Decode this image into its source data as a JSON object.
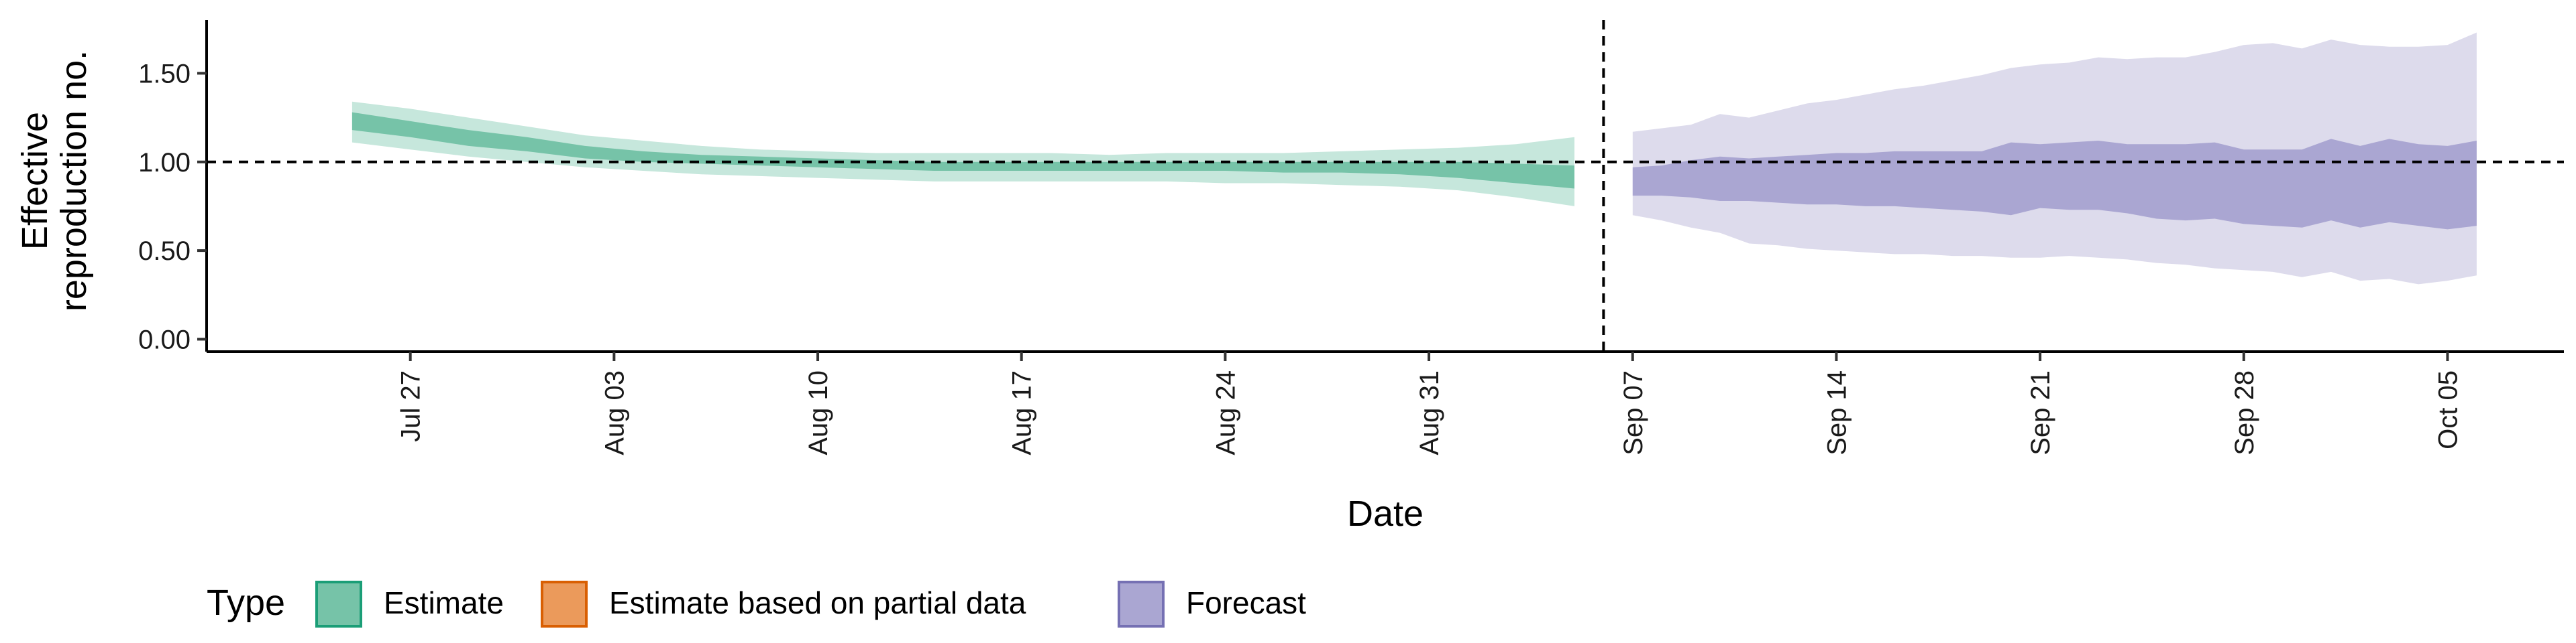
{
  "chart_data": {
    "type": "area",
    "xlabel": "Date",
    "ylabel_lines": [
      "Effective",
      "reproduction no."
    ],
    "ylim": [
      -0.07,
      1.8
    ],
    "yticks": [
      0.0,
      0.5,
      1.0,
      1.5
    ],
    "ytick_labels": [
      "0.00",
      "0.50",
      "1.00",
      "1.50"
    ],
    "xlim": [
      "2020-07-20",
      "2020-10-09"
    ],
    "xticks": [
      "2020-07-27",
      "2020-08-03",
      "2020-08-10",
      "2020-08-17",
      "2020-08-24",
      "2020-08-31",
      "2020-09-07",
      "2020-09-14",
      "2020-09-21",
      "2020-09-28",
      "2020-10-05"
    ],
    "xtick_labels": [
      "Jul 27",
      "Aug 03",
      "Aug 10",
      "Aug 17",
      "Aug 24",
      "Aug 31",
      "Sep 07",
      "Sep 14",
      "Sep 21",
      "Sep 28",
      "Oct 05"
    ],
    "reference_lines": {
      "horizontal_y": 1.0,
      "vertical_date": "2020-09-06"
    },
    "grid": false,
    "legend": {
      "position": "bottom-left",
      "title": "Type",
      "items": [
        {
          "label": "Estimate",
          "fill": "#76c3a8",
          "stroke": "#1b9e77"
        },
        {
          "label": "Estimate based on partial data",
          "fill": "#eb9a5b",
          "stroke": "#d95f02"
        },
        {
          "label": "Forecast",
          "fill": "#aaa6d2",
          "stroke": "#7570b3"
        }
      ]
    },
    "series": [
      {
        "name": "Estimate",
        "colors": {
          "outer": "#c6e7dc",
          "inner": "#76c3a8"
        },
        "dates": [
          "2020-07-25",
          "2020-07-27",
          "2020-07-29",
          "2020-07-31",
          "2020-08-02",
          "2020-08-04",
          "2020-08-06",
          "2020-08-08",
          "2020-08-10",
          "2020-08-12",
          "2020-08-14",
          "2020-08-16",
          "2020-08-18",
          "2020-08-20",
          "2020-08-22",
          "2020-08-24",
          "2020-08-26",
          "2020-08-28",
          "2020-08-30",
          "2020-09-01",
          "2020-09-03",
          "2020-09-05"
        ],
        "outer_upper": [
          1.34,
          1.3,
          1.25,
          1.2,
          1.15,
          1.12,
          1.09,
          1.07,
          1.06,
          1.05,
          1.05,
          1.05,
          1.05,
          1.04,
          1.05,
          1.05,
          1.05,
          1.06,
          1.07,
          1.08,
          1.1,
          1.14
        ],
        "inner_upper": [
          1.28,
          1.23,
          1.18,
          1.14,
          1.09,
          1.06,
          1.04,
          1.03,
          1.02,
          1.01,
          1.0,
          1.0,
          1.0,
          1.0,
          1.0,
          1.0,
          1.0,
          1.0,
          1.0,
          1.0,
          0.99,
          0.98
        ],
        "inner_lower": [
          1.18,
          1.14,
          1.09,
          1.06,
          1.02,
          1.0,
          0.99,
          0.98,
          0.97,
          0.96,
          0.95,
          0.95,
          0.95,
          0.95,
          0.95,
          0.95,
          0.94,
          0.94,
          0.93,
          0.91,
          0.88,
          0.85
        ],
        "outer_lower": [
          1.11,
          1.07,
          1.03,
          1.0,
          0.97,
          0.95,
          0.93,
          0.92,
          0.91,
          0.9,
          0.89,
          0.89,
          0.89,
          0.89,
          0.89,
          0.88,
          0.88,
          0.87,
          0.86,
          0.84,
          0.8,
          0.75
        ]
      },
      {
        "name": "Forecast",
        "colors": {
          "outer": "#dddbec",
          "inner": "#aaa6d2"
        },
        "dates": [
          "2020-09-07",
          "2020-09-08",
          "2020-09-09",
          "2020-09-10",
          "2020-09-11",
          "2020-09-12",
          "2020-09-13",
          "2020-09-14",
          "2020-09-15",
          "2020-09-16",
          "2020-09-17",
          "2020-09-18",
          "2020-09-19",
          "2020-09-20",
          "2020-09-21",
          "2020-09-22",
          "2020-09-23",
          "2020-09-24",
          "2020-09-25",
          "2020-09-26",
          "2020-09-27",
          "2020-09-28",
          "2020-09-29",
          "2020-09-30",
          "2020-10-01",
          "2020-10-02",
          "2020-10-03",
          "2020-10-04",
          "2020-10-05",
          "2020-10-06"
        ],
        "outer_upper": [
          1.17,
          1.19,
          1.21,
          1.27,
          1.25,
          1.29,
          1.33,
          1.35,
          1.38,
          1.41,
          1.43,
          1.46,
          1.49,
          1.53,
          1.55,
          1.56,
          1.59,
          1.58,
          1.59,
          1.59,
          1.62,
          1.66,
          1.67,
          1.64,
          1.69,
          1.66,
          1.65,
          1.65,
          1.66,
          1.73
        ],
        "inner_upper": [
          0.97,
          0.98,
          1.01,
          1.03,
          1.02,
          1.03,
          1.04,
          1.05,
          1.05,
          1.06,
          1.06,
          1.06,
          1.06,
          1.11,
          1.1,
          1.11,
          1.12,
          1.1,
          1.1,
          1.1,
          1.11,
          1.07,
          1.07,
          1.07,
          1.13,
          1.09,
          1.13,
          1.1,
          1.09,
          1.12
        ],
        "inner_lower": [
          0.81,
          0.81,
          0.8,
          0.78,
          0.78,
          0.77,
          0.76,
          0.76,
          0.75,
          0.75,
          0.74,
          0.73,
          0.72,
          0.7,
          0.74,
          0.73,
          0.73,
          0.71,
          0.68,
          0.67,
          0.68,
          0.65,
          0.64,
          0.63,
          0.67,
          0.63,
          0.66,
          0.64,
          0.62,
          0.64
        ],
        "outer_lower": [
          0.7,
          0.67,
          0.63,
          0.6,
          0.54,
          0.53,
          0.51,
          0.5,
          0.49,
          0.48,
          0.48,
          0.47,
          0.47,
          0.46,
          0.46,
          0.47,
          0.46,
          0.45,
          0.43,
          0.42,
          0.4,
          0.39,
          0.38,
          0.35,
          0.38,
          0.33,
          0.34,
          0.31,
          0.33,
          0.36
        ]
      }
    ]
  }
}
